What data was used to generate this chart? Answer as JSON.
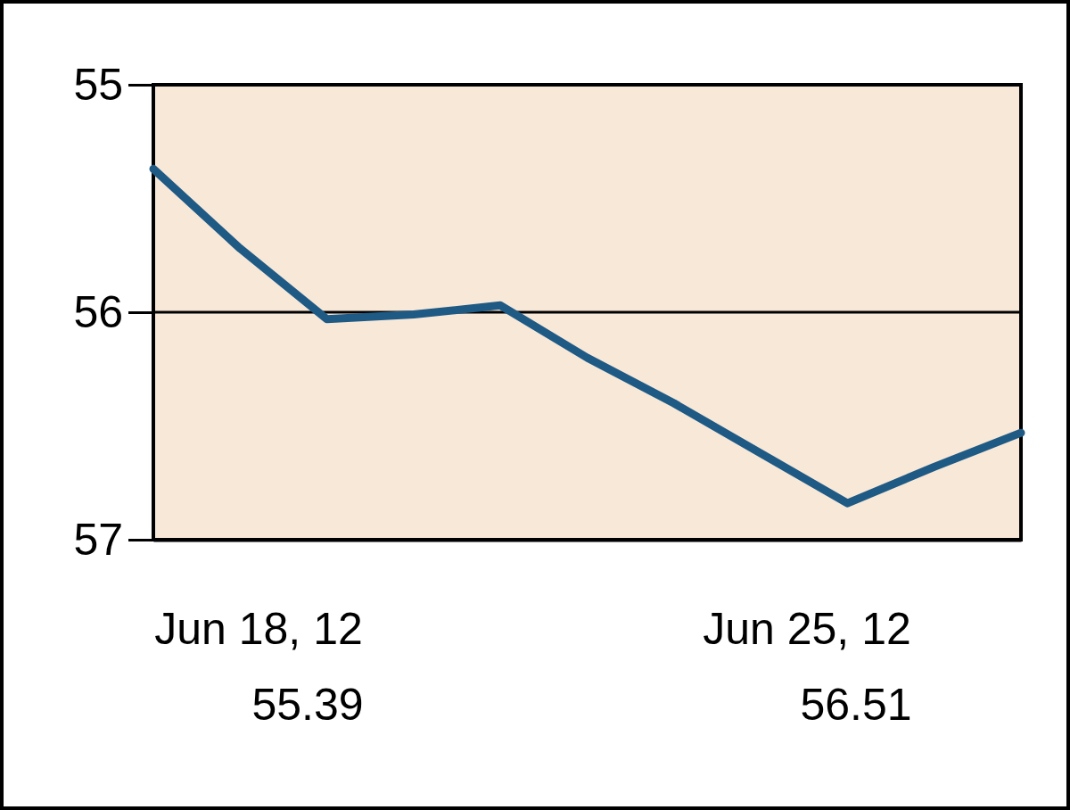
{
  "chart_data": {
    "type": "line",
    "categories": [
      null,
      null,
      null,
      null,
      null,
      null,
      null,
      null,
      null,
      null,
      null
    ],
    "series": [
      {
        "color": "#1f5a85",
        "values": [
          55.37,
          55.72,
          56.03,
          56.01,
          55.97,
          56.2,
          56.4,
          56.62,
          56.84,
          56.68,
          56.53
        ]
      }
    ],
    "ylim": [
      57,
      55
    ],
    "yticks": [
      55,
      56,
      57
    ],
    "grid": "y",
    "marker": "none",
    "line_style": "solid",
    "annotations": [
      "Jun 18, 12\n55.39",
      "Jun 25, 12\n56.51"
    ]
  }
}
